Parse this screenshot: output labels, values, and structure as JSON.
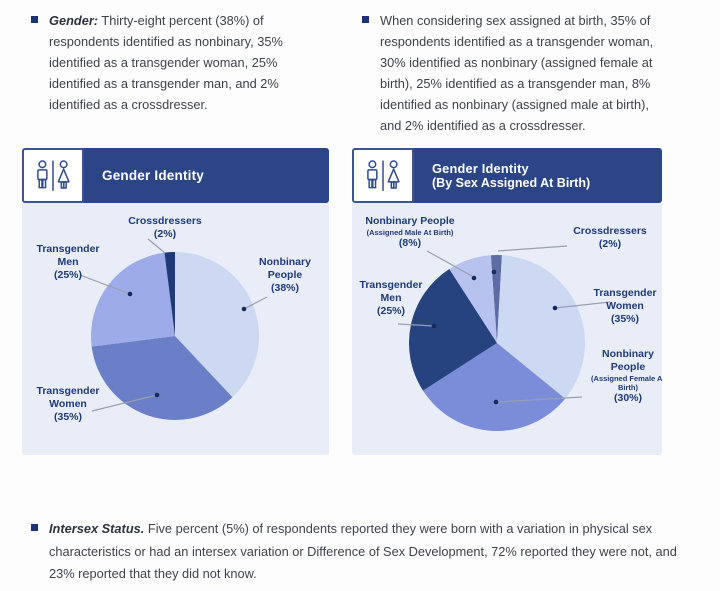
{
  "bullets": {
    "top_left": {
      "lead": "Gender:",
      "text": "Thirty-eight percent (38%) of respondents identified as nonbinary, 35% identified as a transgender woman, 25% identified as a transgender man, and 2% identified as a crossdresser."
    },
    "top_right": {
      "lead": "",
      "text": "When considering sex assigned at birth, 35% of respondents identified as a transgender woman, 30% identified as nonbinary (assigned female at birth), 25% identified as a transgender man, 8% identified as nonbinary (assigned male at birth), and 2% identified as a crossdresser."
    },
    "bottom": {
      "lead": "Intersex Status.",
      "text": "Five percent (5%) of respondents reported they were born with a variation in physical sex characteristics or had an intersex variation or Difference of Sex Development, 72% reported they were not, and 23% reported that they did not know."
    }
  },
  "colors": {
    "title_bar": "#2b4587",
    "panel_body": "#e9edf8",
    "bullet_square": "#1e3472",
    "label_text": "#1e3a78",
    "leader_line": "#989fae",
    "leader_dot": "#16295c"
  },
  "chart_data": [
    {
      "type": "pie",
      "title": "Gender Identity",
      "title_line2": "",
      "icon": "man-woman-restroom-icon",
      "legend": "none (external labels with leader lines)",
      "start_angle": 0,
      "slices": [
        {
          "label": "Nonbinary People",
          "sublabel": "",
          "pct_label": "(38%)",
          "value": 38,
          "color": "#cdd8f3"
        },
        {
          "label": "Transgender Women",
          "sublabel": "",
          "pct_label": "(35%)",
          "value": 35,
          "color": "#6b7ec8"
        },
        {
          "label": "Transgender Men",
          "sublabel": "",
          "pct_label": "(25%)",
          "value": 25,
          "color": "#9dabe8"
        },
        {
          "label": "Crossdressers",
          "sublabel": "",
          "pct_label": "(2%)",
          "value": 2,
          "color": "#1e3a78"
        }
      ]
    },
    {
      "type": "pie",
      "title": "Gender Identity",
      "title_line2": "(By Sex Assigned At Birth)",
      "icon": "man-woman-restroom-icon",
      "legend": "none (external labels with leader lines)",
      "start_angle": -4,
      "slices": [
        {
          "label": "Crossdressers",
          "sublabel": "",
          "pct_label": "(2%)",
          "value": 2,
          "color": "#5d6da3"
        },
        {
          "label": "Transgender Women",
          "sublabel": "",
          "pct_label": "(35%)",
          "value": 35,
          "color": "#cdd8f3"
        },
        {
          "label": "Nonbinary People",
          "sublabel": "(Assigned Female At Birth)",
          "pct_label": "(30%)",
          "value": 30,
          "color": "#7b8dd8"
        },
        {
          "label": "Transgender Men",
          "sublabel": "",
          "pct_label": "(25%)",
          "value": 25,
          "color": "#26427f"
        },
        {
          "label": "Nonbinary People",
          "sublabel": "(Assigned Male At Birth)",
          "pct_label": "(8%)",
          "value": 8,
          "color": "#b7c2ee"
        }
      ]
    }
  ]
}
